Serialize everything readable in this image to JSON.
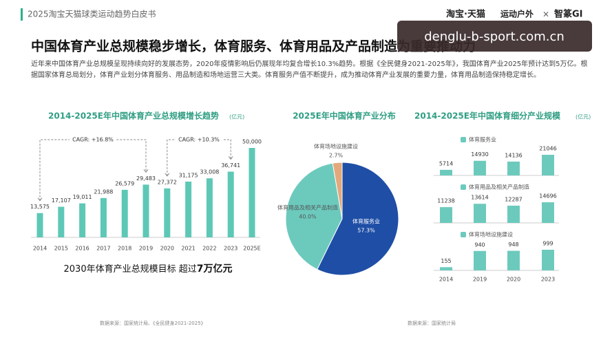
{
  "header": {
    "report": "2025淘宝天猫球类运动趋势白皮书",
    "brands": [
      "淘宝·天猫",
      "运动户外",
      "×",
      "智篆GI"
    ]
  },
  "watermark": "denglu-b-sport.com.cn",
  "title": "中国体育产业总规模稳步增长，体育服务、体育用品及产品制造为重要推动力",
  "intro": "近年来中国体育产业总规模呈现持续向好的发展态势，2020年疫情影响后仍展现年均复合增长10.3%趋势。根据《全民健身2021-2025年》，我国体育产业2025年预计达到5万亿。根据国家体育总局划分，体育产业划分体育服务、用品制造和场地运营三大类。体育服务产值不断提升，成为推动体育产业发展的重要力量，体育用品制造保持稳定增长。",
  "chart_data": [
    {
      "type": "bar",
      "title": "2014-2025E年中国体育产业总规模增长趋势",
      "unit": "(亿元)",
      "color": "#5ec8b6",
      "categories": [
        "2014",
        "2015",
        "2016",
        "2017",
        "2018",
        "2019",
        "2020",
        "2021",
        "2022",
        "2023",
        "2025E"
      ],
      "values": [
        13575,
        17107,
        19011,
        21988,
        26579,
        29483,
        27372,
        31175,
        33008,
        36741,
        50000
      ],
      "value_labels": [
        "13,575",
        "17,107",
        "19,011",
        "21,988",
        "26,579",
        "29,483",
        "27,372",
        "31,175",
        "33,008",
        "36,741",
        "50,000"
      ],
      "annotations": [
        "CAGR: +16.8%",
        "CAGR: +10.3%"
      ]
    },
    {
      "type": "pie",
      "title": "2025E年中国体育产业分布",
      "categories": [
        "体育服务业",
        "体育用品及相关产品制造",
        "体育场地设施建设"
      ],
      "values": [
        57.3,
        40.0,
        2.7
      ],
      "value_labels": [
        "57.3%",
        "40.0%",
        "2.7%"
      ],
      "colors": [
        "#1f4ea6",
        "#6ccabd",
        "#e3a97c"
      ]
    },
    {
      "type": "panels",
      "title": "2014-2025E年中国体育细分产业规模",
      "unit": "(亿元)",
      "categories": [
        "2014",
        "2019",
        "2020",
        "2023"
      ],
      "series": [
        {
          "name": "体育服务业",
          "color": "#6ccabd",
          "values": [
            5714,
            14930,
            14136,
            21046
          ]
        },
        {
          "name": "体育用品及相关产品制造",
          "color": "#6ccabd",
          "values": [
            11238,
            13614,
            12287,
            14696
          ]
        },
        {
          "name": "体育场地设施建设",
          "color": "#6ccabd",
          "values": [
            155,
            940,
            948,
            999
          ]
        }
      ]
    }
  ],
  "callout": {
    "text": "2030年体育产业总规模目标 超过",
    "highlight": "7万亿元"
  },
  "sources": [
    "数据来源：国家统计局、《全民健身2021-2025》",
    "数据来源：国家统计局"
  ]
}
